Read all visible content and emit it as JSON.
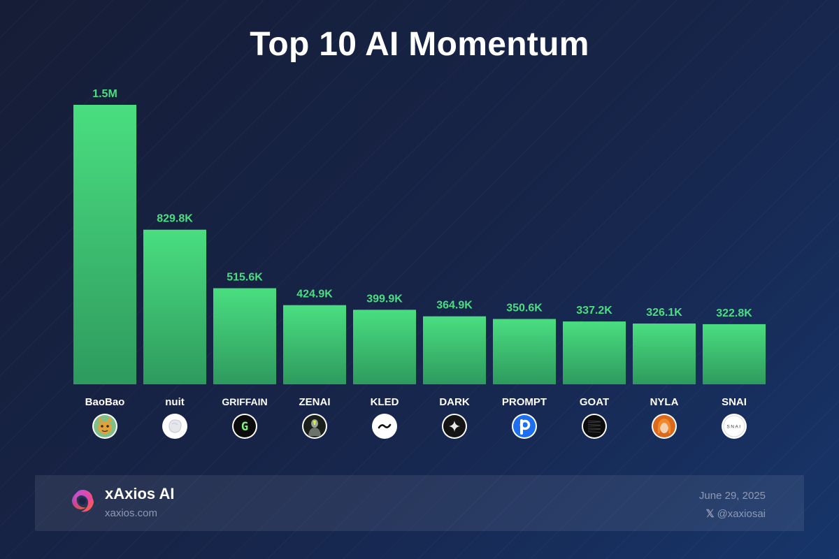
{
  "chart_data": {
    "type": "bar",
    "title": "Top 10 AI Momentum",
    "categories": [
      "BaoBao",
      "nuit",
      "GRIFFAIN",
      "ZENAI",
      "KLED",
      "DARK",
      "PROMPT",
      "GOAT",
      "NYLA",
      "SNAI"
    ],
    "values": [
      1500000,
      829800,
      515600,
      424900,
      399900,
      364900,
      350600,
      337200,
      326100,
      322800
    ],
    "value_labels": [
      "1.5M",
      "829.8K",
      "515.6K",
      "424.9K",
      "399.9K",
      "364.9K",
      "350.6K",
      "337.2K",
      "326.1K",
      "322.8K"
    ],
    "icons": [
      "baobao-avatar-icon",
      "nuit-logo-icon",
      "griffain-logo-icon",
      "zenai-logo-icon",
      "kled-logo-icon",
      "dark-logo-icon",
      "prompt-logo-icon",
      "goat-logo-icon",
      "nyla-avatar-icon",
      "snai-logo-icon"
    ],
    "ylim": [
      0,
      1500000
    ],
    "grid": false,
    "colors": {
      "bar_top": "#4ade80",
      "bar_bottom": "#2e9a5e",
      "value_label": "#4ade80"
    }
  },
  "footer": {
    "brand": "xAxios AI",
    "site": "xaxios.com",
    "date": "June 29, 2025",
    "handle": "@xaxiosai"
  }
}
